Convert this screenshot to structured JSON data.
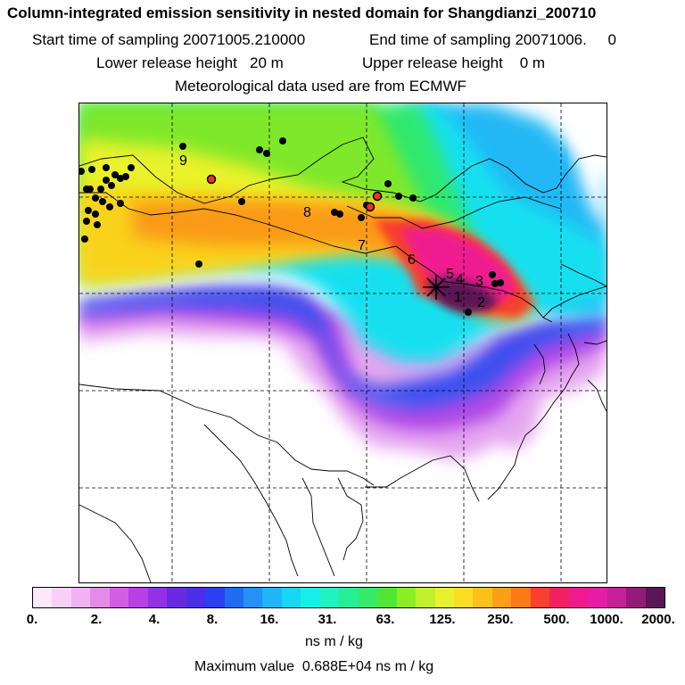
{
  "header": {
    "title": "Column-integrated emission sensitivity in nested domain for Shangdianzi_200710",
    "start_label": "Start time of sampling 20071005.210000",
    "end_label": "End time of sampling 20071006.     0",
    "lower_label": "Lower release height   20 m",
    "upper_label": "Upper release height    0 m",
    "met_label": "Meteorological data used are from ECMWF"
  },
  "map": {
    "receptor_marker": "station-cross-icon",
    "trajectory_labels": [
      "1",
      "2",
      "3",
      "4",
      "5",
      "6",
      "7",
      "8",
      "9"
    ]
  },
  "colorbar": {
    "colors": [
      "#fbe8fb",
      "#f7d0f7",
      "#f2b2f2",
      "#e68ae8",
      "#d35ee6",
      "#b93fe6",
      "#9530e6",
      "#6a28e0",
      "#4a2ee8",
      "#2b40f0",
      "#1f6cf2",
      "#2391f5",
      "#1fb6f6",
      "#14d8f5",
      "#17eee8",
      "#1ef3c2",
      "#26ee95",
      "#36ea6c",
      "#52e633",
      "#8ced24",
      "#bff22a",
      "#e8f22c",
      "#f9de21",
      "#fbc11a",
      "#fba016",
      "#fa7a17",
      "#f7402e",
      "#f31f5f",
      "#ef1a8f",
      "#e61ca8",
      "#c52096",
      "#931b7a",
      "#5c1557"
    ],
    "tick_labels": [
      "0.",
      "2.",
      "4.",
      "8.",
      "16.",
      "31.",
      "63.",
      "125.",
      "250.",
      "500.",
      "1000.",
      "2000."
    ],
    "unit": "ns m / kg",
    "max_value_label": "Maximum value  0.688E+04 ns m / kg"
  }
}
